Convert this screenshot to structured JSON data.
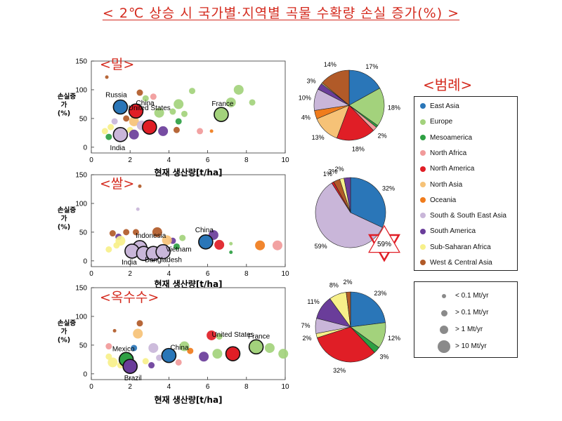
{
  "title": "< 2℃ 상승 시 국가별·지역별 곡물 수확량 손실 증가(%) >",
  "legend_title": "<범례>",
  "colors": {
    "East Asia": "#2a76b8",
    "Europe": "#a3d27c",
    "Mesoamerica": "#2ea043",
    "North Africa": "#f19a9a",
    "North America": "#e01e26",
    "North Asia": "#f6c277",
    "Oceania": "#f07c1c",
    "South & South East Asia": "#c9b6d9",
    "South America": "#6a3d9a",
    "Sub-Saharan Africa": "#f7f08a",
    "West & Central Asia": "#b15a28"
  },
  "legend": [
    "East Asia",
    "Europe",
    "Mesoamerica",
    "North Africa",
    "North America",
    "North Asia",
    "Oceania",
    "South & South East Asia",
    "South America",
    "Sub-Saharan Africa",
    "West & Central Asia"
  ],
  "size_legend": [
    "< 0.1 Mt/yr",
    "> 0.1 Mt/yr",
    "> 1 Mt/yr",
    "> 10 Mt/yr"
  ],
  "chart_data": [
    {
      "type": "scatter",
      "crop": "<밀>",
      "xlabel": "현재 생산량[t/ha]",
      "ylabel": "손실증가(%)",
      "xlim": [
        0,
        10
      ],
      "ylim": [
        -10,
        150
      ],
      "xticks": [
        "0",
        "2",
        "4",
        "6",
        "8",
        "10"
      ],
      "yticks": [
        "0",
        "50",
        "100",
        "150"
      ],
      "points": [
        {
          "x": 1.5,
          "y": 70,
          "r": "> 10 Mt/yr",
          "region": "East Asia",
          "label": "Russia"
        },
        {
          "x": 2.3,
          "y": 63,
          "r": "> 10 Mt/yr",
          "region": "North America",
          "label": "China"
        },
        {
          "x": 3.0,
          "y": 35,
          "r": "> 10 Mt/yr",
          "region": "North America",
          "label": "United States"
        },
        {
          "x": 1.5,
          "y": 22,
          "r": "> 10 Mt/yr",
          "region": "South & South East Asia",
          "label": "India"
        },
        {
          "x": 6.7,
          "y": 57,
          "r": "> 10 Mt/yr",
          "region": "Europe",
          "label": "France"
        },
        {
          "x": 7.6,
          "y": 100,
          "r": "> 1 Mt/yr",
          "region": "Europe"
        },
        {
          "x": 7.2,
          "y": 78,
          "r": "> 1 Mt/yr",
          "region": "Europe"
        },
        {
          "x": 8.3,
          "y": 78,
          "r": "> 0.1 Mt/yr",
          "region": "Europe"
        },
        {
          "x": 5.2,
          "y": 98,
          "r": "> 0.1 Mt/yr",
          "region": "Europe"
        },
        {
          "x": 4.5,
          "y": 75,
          "r": "> 1 Mt/yr",
          "region": "Europe"
        },
        {
          "x": 4.2,
          "y": 62,
          "r": "> 0.1 Mt/yr",
          "region": "Europe"
        },
        {
          "x": 4.8,
          "y": 58,
          "r": "> 0.1 Mt/yr",
          "region": "Europe"
        },
        {
          "x": 3.5,
          "y": 60,
          "r": "> 1 Mt/yr",
          "region": "Europe"
        },
        {
          "x": 2.8,
          "y": 85,
          "r": "> 0.1 Mt/yr",
          "region": "Europe"
        },
        {
          "x": 2.5,
          "y": 95,
          "r": "> 0.1 Mt/yr",
          "region": "West & Central Asia"
        },
        {
          "x": 0.8,
          "y": 122,
          "r": "< 0.1 Mt/yr",
          "region": "West & Central Asia"
        },
        {
          "x": 3.2,
          "y": 88,
          "r": "> 0.1 Mt/yr",
          "region": "North Africa"
        },
        {
          "x": 5.6,
          "y": 28,
          "r": "> 0.1 Mt/yr",
          "region": "North Africa"
        },
        {
          "x": 6.2,
          "y": 28,
          "r": "< 0.1 Mt/yr",
          "region": "Oceania"
        },
        {
          "x": 2.2,
          "y": 45,
          "r": "> 1 Mt/yr",
          "region": "North Asia"
        },
        {
          "x": 2.0,
          "y": 30,
          "r": "> 0.1 Mt/yr",
          "region": "Sub-Saharan Africa"
        },
        {
          "x": 1.0,
          "y": 35,
          "r": "> 0.1 Mt/yr",
          "region": "Sub-Saharan Africa"
        },
        {
          "x": 0.7,
          "y": 28,
          "r": "> 0.1 Mt/yr",
          "region": "Sub-Saharan Africa"
        },
        {
          "x": 3.7,
          "y": 28,
          "r": "> 1 Mt/yr",
          "region": "South America"
        },
        {
          "x": 2.2,
          "y": 22,
          "r": "> 1 Mt/yr",
          "region": "South America"
        },
        {
          "x": 0.9,
          "y": 18,
          "r": "> 0.1 Mt/yr",
          "region": "Mesoamerica"
        },
        {
          "x": 4.5,
          "y": 45,
          "r": "> 0.1 Mt/yr",
          "region": "Mesoamerica"
        },
        {
          "x": 2.6,
          "y": 38,
          "r": "> 1 Mt/yr",
          "region": "South & South East Asia"
        },
        {
          "x": 1.2,
          "y": 45,
          "r": "> 0.1 Mt/yr",
          "region": "South & South East Asia"
        },
        {
          "x": 4.4,
          "y": 30,
          "r": "> 0.1 Mt/yr",
          "region": "West & Central Asia"
        },
        {
          "x": 1.8,
          "y": 50,
          "r": "> 0.1 Mt/yr",
          "region": "West & Central Asia"
        }
      ],
      "pie": {
        "slices": [
          {
            "region": "East Asia",
            "value": 17,
            "label": "17%"
          },
          {
            "region": "Europe",
            "value": 18,
            "label": "18%"
          },
          {
            "region": "Mesoamerica",
            "value": 1,
            "label": ""
          },
          {
            "region": "North Africa",
            "value": 2,
            "label": "2%"
          },
          {
            "region": "North America",
            "value": 18,
            "label": "18%"
          },
          {
            "region": "North Asia",
            "value": 13,
            "label": "13%"
          },
          {
            "region": "Oceania",
            "value": 4,
            "label": "4%"
          },
          {
            "region": "South & South East Asia",
            "value": 10,
            "label": "10%"
          },
          {
            "region": "South America",
            "value": 3,
            "label": "3%"
          },
          {
            "region": "Sub-Saharan Africa",
            "value": 0.5,
            "label": ""
          },
          {
            "region": "West & Central Asia",
            "value": 14,
            "label": "14%"
          }
        ]
      }
    },
    {
      "type": "scatter",
      "crop": "<쌀>",
      "xlabel": "현재 생산량[t/ha]",
      "ylabel": "손실증가(%)",
      "xlim": [
        0,
        10
      ],
      "ylim": [
        -10,
        150
      ],
      "xticks": [
        "0",
        "2",
        "4",
        "6",
        "8",
        "10"
      ],
      "yticks": [
        "0",
        "50",
        "100",
        "150"
      ],
      "points": [
        {
          "x": 5.9,
          "y": 33,
          "r": "> 10 Mt/yr",
          "region": "East Asia",
          "label": "China"
        },
        {
          "x": 2.5,
          "y": 23,
          "r": "> 10 Mt/yr",
          "region": "South & South East Asia",
          "label": "Indonesia"
        },
        {
          "x": 2.1,
          "y": 17,
          "r": "> 10 Mt/yr",
          "region": "South & South East Asia",
          "label": "India"
        },
        {
          "x": 2.7,
          "y": 13,
          "r": "> 10 Mt/yr",
          "region": "South & South East Asia"
        },
        {
          "x": 3.2,
          "y": 13,
          "r": "> 10 Mt/yr",
          "region": "South & South East Asia"
        },
        {
          "x": 3.7,
          "y": 16,
          "r": "> 10 Mt/yr",
          "region": "South & South East Asia",
          "label": "Vietnam"
        },
        {
          "x": 3.5,
          "y": 20,
          "r": "> 0.1 Mt/yr",
          "region": "South & South East Asia",
          "label": "Bangladesh"
        },
        {
          "x": 6.3,
          "y": 45,
          "r": "> 1 Mt/yr",
          "region": "South America"
        },
        {
          "x": 6.6,
          "y": 28,
          "r": "> 1 Mt/yr",
          "region": "North America"
        },
        {
          "x": 8.7,
          "y": 27,
          "r": "> 1 Mt/yr",
          "region": "Oceania"
        },
        {
          "x": 9.6,
          "y": 27,
          "r": "> 1 Mt/yr",
          "region": "North Africa"
        },
        {
          "x": 7.2,
          "y": 15,
          "r": "< 0.1 Mt/yr",
          "region": "Mesoamerica"
        },
        {
          "x": 7.2,
          "y": 30,
          "r": "< 0.1 Mt/yr",
          "region": "Europe"
        },
        {
          "x": 2.5,
          "y": 130,
          "r": "< 0.1 Mt/yr",
          "region": "West & Central Asia"
        },
        {
          "x": 2.4,
          "y": 90,
          "r": "< 0.1 Mt/yr",
          "region": "South & South East Asia"
        },
        {
          "x": 1.1,
          "y": 48,
          "r": "> 0.1 Mt/yr",
          "region": "West & Central Asia"
        },
        {
          "x": 1.8,
          "y": 50,
          "r": "> 0.1 Mt/yr",
          "region": "West & Central Asia"
        },
        {
          "x": 2.3,
          "y": 50,
          "r": "> 0.1 Mt/yr",
          "region": "West & Central Asia"
        },
        {
          "x": 3.4,
          "y": 50,
          "r": "> 1 Mt/yr",
          "region": "West & Central Asia"
        },
        {
          "x": 1.5,
          "y": 35,
          "r": "> 1 Mt/yr",
          "region": "Sub-Saharan Africa"
        },
        {
          "x": 0.9,
          "y": 20,
          "r": "> 0.1 Mt/yr",
          "region": "Sub-Saharan Africa"
        },
        {
          "x": 1.3,
          "y": 27,
          "r": "> 0.1 Mt/yr",
          "region": "Sub-Saharan Africa"
        },
        {
          "x": 4.2,
          "y": 35,
          "r": "> 0.1 Mt/yr",
          "region": "South America"
        },
        {
          "x": 4.7,
          "y": 40,
          "r": "> 0.1 Mt/yr",
          "region": "Europe"
        },
        {
          "x": 4.4,
          "y": 25,
          "r": "> 0.1 Mt/yr",
          "region": "Mesoamerica"
        },
        {
          "x": 1.4,
          "y": 42,
          "r": "> 0.1 Mt/yr",
          "region": "South America"
        },
        {
          "x": 3.9,
          "y": 36,
          "r": "> 1 Mt/yr",
          "region": "North Asia"
        }
      ],
      "pie": {
        "slices": [
          {
            "region": "East Asia",
            "value": 32,
            "label": "32%"
          },
          {
            "region": "South & South East Asia",
            "value": 59,
            "label": "59%"
          },
          {
            "region": "North America",
            "value": 1,
            "label": "1%"
          },
          {
            "region": "West & Central Asia",
            "value": 3,
            "label": "3%"
          },
          {
            "region": "Sub-Saharan Africa",
            "value": 2,
            "label": "2%"
          },
          {
            "region": "South America",
            "value": 3,
            "label": ""
          }
        ]
      }
    },
    {
      "type": "scatter",
      "crop": "<옥수수>",
      "xlabel": "현재 생산량[t/ha]",
      "ylabel": "손실증가(%)",
      "xlim": [
        0,
        10
      ],
      "ylim": [
        -10,
        150
      ],
      "xticks": [
        "0",
        "2",
        "4",
        "6",
        "8",
        "10"
      ],
      "yticks": [
        "0",
        "50",
        "100",
        "150"
      ],
      "points": [
        {
          "x": 1.8,
          "y": 25,
          "r": "> 10 Mt/yr",
          "region": "Mesoamerica",
          "label": "Mexico"
        },
        {
          "x": 2.0,
          "y": 13,
          "r": "> 10 Mt/yr",
          "region": "South America",
          "label": "Brazil"
        },
        {
          "x": 4.0,
          "y": 32,
          "r": "> 10 Mt/yr",
          "region": "East Asia",
          "label": "China"
        },
        {
          "x": 7.3,
          "y": 35,
          "r": "> 10 Mt/yr",
          "region": "North America",
          "label": "United States"
        },
        {
          "x": 8.5,
          "y": 47,
          "r": "> 10 Mt/yr",
          "region": "Europe",
          "label": "France"
        },
        {
          "x": 2.5,
          "y": 88,
          "r": "> 0.1 Mt/yr",
          "region": "West & Central Asia"
        },
        {
          "x": 1.2,
          "y": 75,
          "r": "< 0.1 Mt/yr",
          "region": "West & Central Asia"
        },
        {
          "x": 2.4,
          "y": 70,
          "r": "> 1 Mt/yr",
          "region": "North Asia"
        },
        {
          "x": 6.2,
          "y": 67,
          "r": "> 1 Mt/yr",
          "region": "North America"
        },
        {
          "x": 6.6,
          "y": 65,
          "r": "> 0.1 Mt/yr",
          "region": "Europe"
        },
        {
          "x": 5.8,
          "y": 30,
          "r": "> 1 Mt/yr",
          "region": "South America"
        },
        {
          "x": 6.5,
          "y": 35,
          "r": "> 1 Mt/yr",
          "region": "Europe"
        },
        {
          "x": 9.2,
          "y": 45,
          "r": "> 1 Mt/yr",
          "region": "Europe"
        },
        {
          "x": 9.9,
          "y": 35,
          "r": "> 1 Mt/yr",
          "region": "Europe"
        },
        {
          "x": 4.8,
          "y": 48,
          "r": "> 1 Mt/yr",
          "region": "Europe"
        },
        {
          "x": 1.1,
          "y": 20,
          "r": "> 1 Mt/yr",
          "region": "Sub-Saharan Africa"
        },
        {
          "x": 0.9,
          "y": 30,
          "r": "> 0.1 Mt/yr",
          "region": "Sub-Saharan Africa"
        },
        {
          "x": 1.5,
          "y": 15,
          "r": "> 0.1 Mt/yr",
          "region": "Sub-Saharan Africa"
        },
        {
          "x": 2.8,
          "y": 22,
          "r": "> 0.1 Mt/yr",
          "region": "Sub-Saharan Africa"
        },
        {
          "x": 3.2,
          "y": 45,
          "r": "> 1 Mt/yr",
          "region": "South & South East Asia"
        },
        {
          "x": 3.5,
          "y": 28,
          "r": "> 0.1 Mt/yr",
          "region": "South & South East Asia"
        },
        {
          "x": 3.1,
          "y": 15,
          "r": "> 0.1 Mt/yr",
          "region": "South America"
        },
        {
          "x": 2.2,
          "y": 45,
          "r": "> 0.1 Mt/yr",
          "region": "East Asia"
        },
        {
          "x": 5.1,
          "y": 40,
          "r": "> 0.1 Mt/yr",
          "region": "Oceania"
        },
        {
          "x": 4.5,
          "y": 20,
          "r": "> 0.1 Mt/yr",
          "region": "North Africa"
        },
        {
          "x": 0.9,
          "y": 48,
          "r": "> 0.1 Mt/yr",
          "region": "North Africa"
        }
      ],
      "pie": {
        "slices": [
          {
            "region": "East Asia",
            "value": 23,
            "label": "23%"
          },
          {
            "region": "Europe",
            "value": 12,
            "label": "12%"
          },
          {
            "region": "Mesoamerica",
            "value": 3,
            "label": "3%"
          },
          {
            "region": "North America",
            "value": 32,
            "label": "32%"
          },
          {
            "region": "Sub-Saharan Africa",
            "value": 2,
            "label": "2%"
          },
          {
            "region": "South & South East Asia",
            "value": 7,
            "label": "7%"
          },
          {
            "region": "South America",
            "value": 11,
            "label": "11%"
          },
          {
            "region": "Sub-Saharan Africa",
            "value": 8,
            "label": "8%"
          },
          {
            "region": "West & Central Asia",
            "value": 2,
            "label": "2%"
          }
        ]
      }
    }
  ]
}
